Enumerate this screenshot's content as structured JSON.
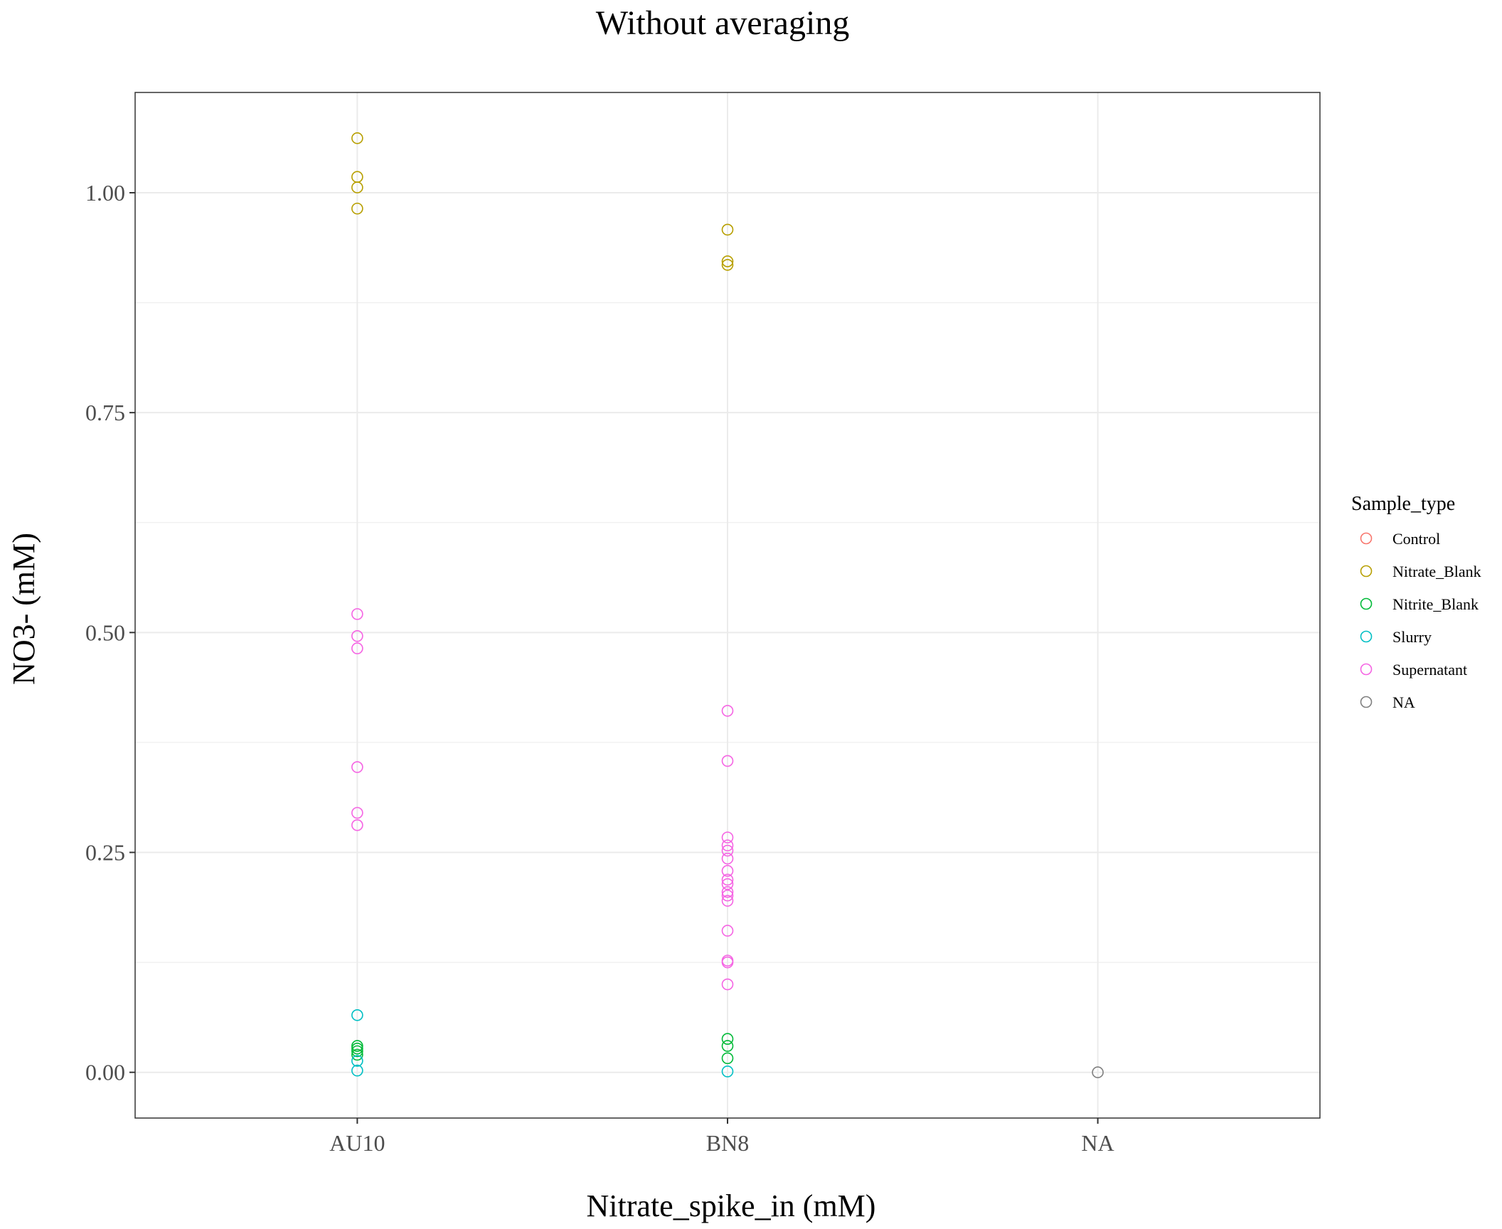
{
  "chart_data": {
    "type": "scatter",
    "title": "Without averaging",
    "xlabel": "Nitrate_spike_in (mM)",
    "ylabel": "NO3- (mM)",
    "categories": [
      "AU10",
      "BN8",
      "NA"
    ],
    "ylim": [
      -0.052,
      1.114
    ],
    "yticks": [
      "0.00",
      "0.25",
      "0.50",
      "0.75",
      "1.00"
    ],
    "ytick_values": [
      0,
      0.25,
      0.5,
      0.75,
      1.0
    ],
    "grid": true,
    "legend": {
      "title": "Sample_type",
      "placement": "right",
      "entries": [
        "Control",
        "Nitrate_Blank",
        "Nitrite_Blank",
        "Slurry",
        "Supernatant",
        "NA"
      ]
    },
    "series": [
      {
        "name": "Control",
        "color": "#F8766D",
        "points": []
      },
      {
        "name": "Nitrate_Blank",
        "color": "#B79F00",
        "points": [
          {
            "x": "AU10",
            "y": 1.062
          },
          {
            "x": "AU10",
            "y": 1.018
          },
          {
            "x": "AU10",
            "y": 1.006
          },
          {
            "x": "AU10",
            "y": 0.982
          },
          {
            "x": "BN8",
            "y": 0.958
          },
          {
            "x": "BN8",
            "y": 0.922
          },
          {
            "x": "BN8",
            "y": 0.918
          }
        ]
      },
      {
        "name": "Nitrite_Blank",
        "color": "#00BA38",
        "points": [
          {
            "x": "AU10",
            "y": 0.03
          },
          {
            "x": "AU10",
            "y": 0.027
          },
          {
            "x": "AU10",
            "y": 0.024
          },
          {
            "x": "AU10",
            "y": 0.02
          },
          {
            "x": "BN8",
            "y": 0.038
          },
          {
            "x": "BN8",
            "y": 0.03
          },
          {
            "x": "BN8",
            "y": 0.016
          }
        ]
      },
      {
        "name": "Slurry",
        "color": "#00BFC4",
        "points": [
          {
            "x": "AU10",
            "y": 0.065
          },
          {
            "x": "AU10",
            "y": 0.013
          },
          {
            "x": "AU10",
            "y": 0.002
          },
          {
            "x": "BN8",
            "y": 0.001
          }
        ]
      },
      {
        "name": "Supernatant",
        "color": "#F564E3",
        "points": [
          {
            "x": "AU10",
            "y": 0.521
          },
          {
            "x": "AU10",
            "y": 0.496
          },
          {
            "x": "AU10",
            "y": 0.482
          },
          {
            "x": "AU10",
            "y": 0.347
          },
          {
            "x": "AU10",
            "y": 0.295
          },
          {
            "x": "AU10",
            "y": 0.281
          },
          {
            "x": "BN8",
            "y": 0.411
          },
          {
            "x": "BN8",
            "y": 0.354
          },
          {
            "x": "BN8",
            "y": 0.267
          },
          {
            "x": "BN8",
            "y": 0.258
          },
          {
            "x": "BN8",
            "y": 0.252
          },
          {
            "x": "BN8",
            "y": 0.243
          },
          {
            "x": "BN8",
            "y": 0.229
          },
          {
            "x": "BN8",
            "y": 0.219
          },
          {
            "x": "BN8",
            "y": 0.214
          },
          {
            "x": "BN8",
            "y": 0.205
          },
          {
            "x": "BN8",
            "y": 0.201
          },
          {
            "x": "BN8",
            "y": 0.195
          },
          {
            "x": "BN8",
            "y": 0.161
          },
          {
            "x": "BN8",
            "y": 0.127
          },
          {
            "x": "BN8",
            "y": 0.125
          },
          {
            "x": "BN8",
            "y": 0.1
          }
        ]
      },
      {
        "name": "NA",
        "color": "#7F7F7F",
        "points": [
          {
            "x": "NA",
            "y": 0.0
          }
        ]
      }
    ]
  }
}
